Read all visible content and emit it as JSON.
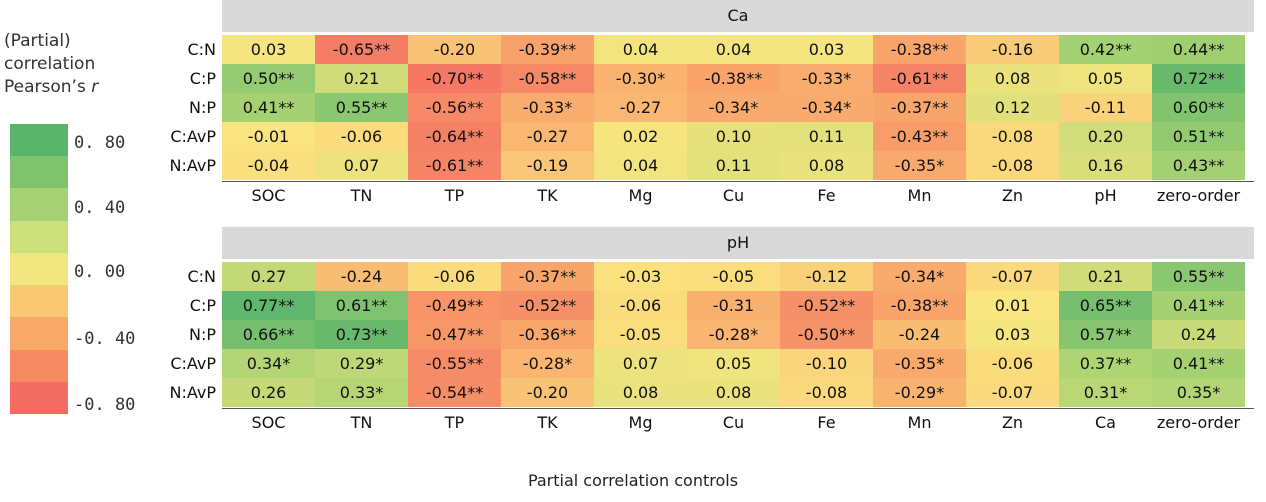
{
  "legend": {
    "title_line1": "(Partial)",
    "title_line2": "correlation",
    "title_line3": "Pearson’s",
    "title_r": "r",
    "ticks": [
      "0. 80",
      "0. 40",
      "0. 00",
      "-0. 40",
      "-0. 80"
    ],
    "colors": [
      "#5ab46b",
      "#80c36d",
      "#a6d273",
      "#cbe07a",
      "#f2e680",
      "#f9c873",
      "#f9aa6a",
      "#f68a62",
      "#f26c62"
    ]
  },
  "xlabel": "Partial correlation controls",
  "chart_data": [
    {
      "type": "heatmap",
      "title": "Ca",
      "rows": [
        "C:N",
        "C:P",
        "N:P",
        "C:AvP",
        "N:AvP"
      ],
      "columns": [
        "SOC",
        "TN",
        "TP",
        "TK",
        "Mg",
        "Cu",
        "Fe",
        "Mn",
        "Zn",
        "pH",
        "zero-order"
      ],
      "values": [
        [
          0.03,
          -0.65,
          -0.2,
          -0.39,
          0.04,
          0.04,
          0.03,
          -0.38,
          -0.16,
          0.42,
          0.44
        ],
        [
          0.5,
          0.21,
          -0.7,
          -0.58,
          -0.3,
          -0.38,
          -0.33,
          -0.61,
          0.08,
          0.05,
          0.72
        ],
        [
          0.41,
          0.55,
          -0.56,
          -0.33,
          -0.27,
          -0.34,
          -0.34,
          -0.37,
          0.12,
          -0.11,
          0.6
        ],
        [
          -0.01,
          -0.06,
          -0.64,
          -0.27,
          0.02,
          0.1,
          0.11,
          -0.43,
          -0.08,
          0.2,
          0.51
        ],
        [
          -0.04,
          0.07,
          -0.61,
          -0.19,
          0.04,
          0.11,
          0.08,
          -0.35,
          -0.08,
          0.16,
          0.43
        ]
      ],
      "labels": [
        [
          "0.03",
          "-0.65**",
          "-0.20",
          "-0.39**",
          "0.04",
          "0.04",
          "0.03",
          "-0.38**",
          "-0.16",
          "0.42**",
          "0.44**"
        ],
        [
          "0.50**",
          "0.21",
          "-0.70**",
          "-0.58**",
          "-0.30*",
          "-0.38**",
          "-0.33*",
          "-0.61**",
          "0.08",
          "0.05",
          "0.72**"
        ],
        [
          "0.41**",
          "0.55**",
          "-0.56**",
          "-0.33*",
          "-0.27",
          "-0.34*",
          "-0.34*",
          "-0.37**",
          "0.12",
          "-0.11",
          "0.60**"
        ],
        [
          "-0.01",
          "-0.06",
          "-0.64**",
          "-0.27",
          "0.02",
          "0.10",
          "0.11",
          "-0.43**",
          "-0.08",
          "0.20",
          "0.51**"
        ],
        [
          "-0.04",
          "0.07",
          "-0.61**",
          "-0.19",
          "0.04",
          "0.11",
          "0.08",
          "-0.35*",
          "-0.08",
          "0.16",
          "0.43**"
        ]
      ]
    },
    {
      "type": "heatmap",
      "title": "pH",
      "rows": [
        "C:N",
        "C:P",
        "N:P",
        "C:AvP",
        "N:AvP"
      ],
      "columns": [
        "SOC",
        "TN",
        "TP",
        "TK",
        "Mg",
        "Cu",
        "Fe",
        "Mn",
        "Zn",
        "Ca",
        "zero-order"
      ],
      "values": [
        [
          0.27,
          -0.24,
          -0.06,
          -0.37,
          -0.03,
          -0.05,
          -0.12,
          -0.34,
          -0.07,
          0.21,
          0.55
        ],
        [
          0.77,
          0.61,
          -0.49,
          -0.52,
          -0.06,
          -0.31,
          -0.52,
          -0.38,
          0.01,
          0.65,
          0.41
        ],
        [
          0.66,
          0.73,
          -0.47,
          -0.36,
          -0.05,
          -0.28,
          -0.5,
          -0.24,
          0.03,
          0.57,
          0.24
        ],
        [
          0.34,
          0.29,
          -0.55,
          -0.28,
          0.07,
          0.05,
          -0.1,
          -0.35,
          -0.06,
          0.37,
          0.41
        ],
        [
          0.26,
          0.33,
          -0.54,
          -0.2,
          0.08,
          0.08,
          -0.08,
          -0.29,
          -0.07,
          0.31,
          0.35
        ]
      ],
      "labels": [
        [
          "0.27",
          "-0.24",
          "-0.06",
          "-0.37**",
          "-0.03",
          "-0.05",
          "-0.12",
          "-0.34*",
          "-0.07",
          "0.21",
          "0.55**"
        ],
        [
          "0.77**",
          "0.61**",
          "-0.49**",
          "-0.52**",
          "-0.06",
          "-0.31",
          "-0.52**",
          "-0.38**",
          "0.01",
          "0.65**",
          "0.41**"
        ],
        [
          "0.66**",
          "0.73**",
          "-0.47**",
          "-0.36**",
          "-0.05",
          "-0.28*",
          "-0.50**",
          "-0.24",
          "0.03",
          "0.57**",
          "0.24"
        ],
        [
          "0.34*",
          "0.29*",
          "-0.55**",
          "-0.28*",
          "0.07",
          "0.05",
          "-0.10",
          "-0.35*",
          "-0.06",
          "0.37**",
          "0.41**"
        ],
        [
          "0.26",
          "0.33*",
          "-0.54**",
          "-0.20",
          "0.08",
          "0.08",
          "-0.08",
          "-0.29*",
          "-0.07",
          "0.31*",
          "0.35*"
        ]
      ]
    }
  ]
}
